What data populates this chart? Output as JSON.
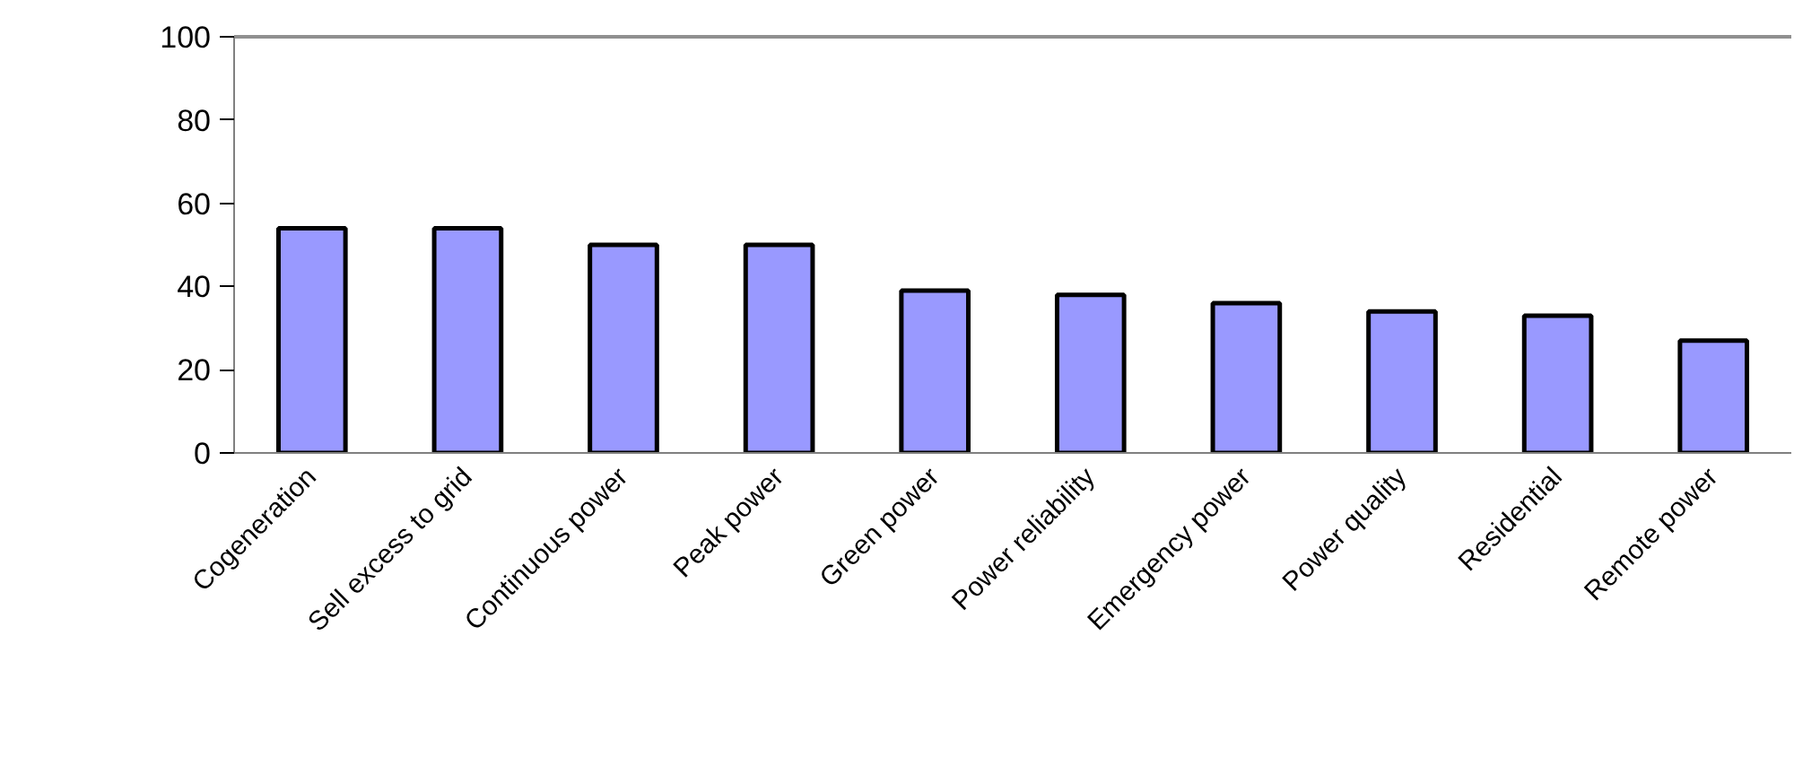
{
  "chart_data": {
    "type": "bar",
    "categories": [
      "Cogeneration",
      "Sell excess to grid",
      "Continuous power",
      "Peak power",
      "Green power",
      "Power reliability",
      "Emergency power",
      "Power quality",
      "Residential",
      "Remote power"
    ],
    "values": [
      54,
      54,
      50,
      50,
      39,
      38,
      36,
      34,
      33,
      27
    ],
    "color": "#9999ff",
    "ylim": [
      0,
      100
    ],
    "yticks": [
      0,
      20,
      40,
      60,
      80,
      100
    ],
    "grid": false
  }
}
